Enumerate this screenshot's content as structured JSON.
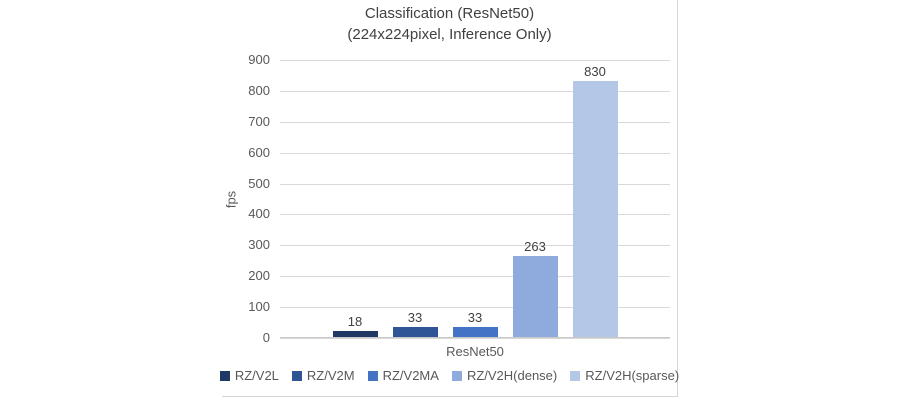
{
  "title": {
    "line1": "Classification (ResNet50)",
    "line2": "(224x224pixel, Inference Only)"
  },
  "chart_data": {
    "type": "bar",
    "title": "Classification (ResNet50) (224x224pixel, Inference Only)",
    "categories": [
      "ResNet50"
    ],
    "series": [
      {
        "name": "RZ/V2L",
        "values": [
          18
        ],
        "color": "#1F3864"
      },
      {
        "name": "RZ/V2M",
        "values": [
          33
        ],
        "color": "#2F5597"
      },
      {
        "name": "RZ/V2MA",
        "values": [
          33
        ],
        "color": "#4472C4"
      },
      {
        "name": "RZ/V2H(dense)",
        "values": [
          263
        ],
        "color": "#8FAADC"
      },
      {
        "name": "RZ/V2H(sparse)",
        "values": [
          830
        ],
        "color": "#B4C7E7"
      }
    ],
    "xlabel": "ResNet50",
    "ylabel": "fps",
    "ylim": [
      0,
      900
    ],
    "yticks": [
      0,
      100,
      200,
      300,
      400,
      500,
      600,
      700,
      800,
      900
    ],
    "grid": true,
    "legend_position": "bottom",
    "gridline_color": "#D9D9D9",
    "text_color": "#595959",
    "data_label_color": "#404040"
  }
}
